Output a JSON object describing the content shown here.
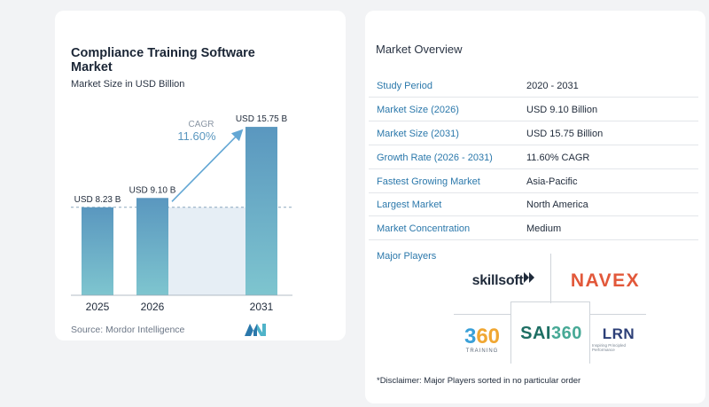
{
  "chart_data": {
    "type": "bar",
    "title": "Compliance Training Software Market",
    "subtitle": "Market Size in USD Billion",
    "categories": [
      "2025",
      "2026",
      "2031"
    ],
    "values": [
      8.23,
      9.1,
      15.75
    ],
    "data_labels": [
      "USD 8.23 B",
      "USD 9.10 B",
      "USD 15.75 B"
    ],
    "cagr_label": "CAGR",
    "cagr_value": "11.60%",
    "ylim": [
      0,
      17
    ],
    "grid": false,
    "bar_color": "#5f9ec4",
    "source": "Source: Mordor Intelligence"
  },
  "overview": {
    "title": "Market Overview",
    "rows": [
      {
        "label": "Study Period",
        "value": "2020 - 2031"
      },
      {
        "label": "Market Size (2026)",
        "value": "USD 9.10 Billion"
      },
      {
        "label": "Market Size (2031)",
        "value": "USD 15.75 Billion"
      },
      {
        "label": "Growth Rate (2026 - 2031)",
        "value": "11.60% CAGR"
      },
      {
        "label": "Fastest Growing Market",
        "value": "Asia-Pacific"
      },
      {
        "label": "Largest Market",
        "value": "North America"
      },
      {
        "label": "Market Concentration",
        "value": "Medium"
      }
    ],
    "major_players_title": "Major Players",
    "players": {
      "skillsoft": "skillsoft",
      "navex": "NAVEX",
      "t360_a": "3",
      "t360_b": "60",
      "t360_sub": "TRAINING",
      "sai_a": "SAI",
      "sai_b": "360",
      "lrn": "LRN",
      "lrn_sub": "Inspiring Principled Performance"
    },
    "disclaimer": "*Disclaimer: Major Players sorted in no particular order"
  }
}
